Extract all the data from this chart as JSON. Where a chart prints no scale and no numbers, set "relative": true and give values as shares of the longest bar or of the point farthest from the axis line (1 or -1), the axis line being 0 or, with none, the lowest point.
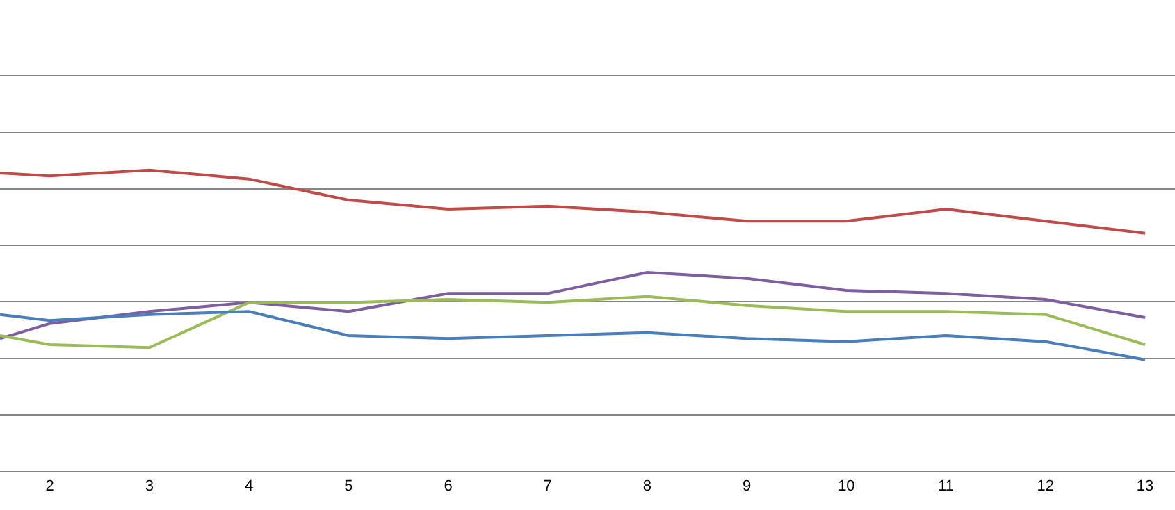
{
  "chart_data": {
    "type": "line",
    "relative": true,
    "x": [
      1.5,
      2,
      3,
      4,
      5,
      6,
      7,
      8,
      9,
      10,
      11,
      12,
      13
    ],
    "xlim": [
      1.5,
      13.3
    ],
    "xticks": [
      2,
      3,
      4,
      5,
      6,
      7,
      8,
      9,
      10,
      11,
      12,
      13
    ],
    "series": [
      {
        "color": "#be4b48",
        "values": [
          0.99,
          0.98,
          1.0,
          0.97,
          0.9,
          0.87,
          0.88,
          0.86,
          0.83,
          0.83,
          0.87,
          0.83,
          0.79
        ]
      },
      {
        "color": "#7d5fa0",
        "values": [
          0.44,
          0.49,
          0.53,
          0.56,
          0.53,
          0.59,
          0.59,
          0.66,
          0.64,
          0.6,
          0.59,
          0.57,
          0.51
        ]
      },
      {
        "color": "#9bbb59",
        "values": [
          0.45,
          0.42,
          0.41,
          0.56,
          0.56,
          0.57,
          0.56,
          0.58,
          0.55,
          0.53,
          0.53,
          0.52,
          0.42
        ]
      },
      {
        "color": "#4a7ebb",
        "values": [
          0.52,
          0.5,
          0.52,
          0.53,
          0.45,
          0.44,
          0.45,
          0.46,
          0.44,
          0.43,
          0.45,
          0.43,
          0.37
        ]
      }
    ],
    "grid": "y",
    "legend": false,
    "marker": "none",
    "line_style": "solid",
    "tick_labels": "x"
  }
}
